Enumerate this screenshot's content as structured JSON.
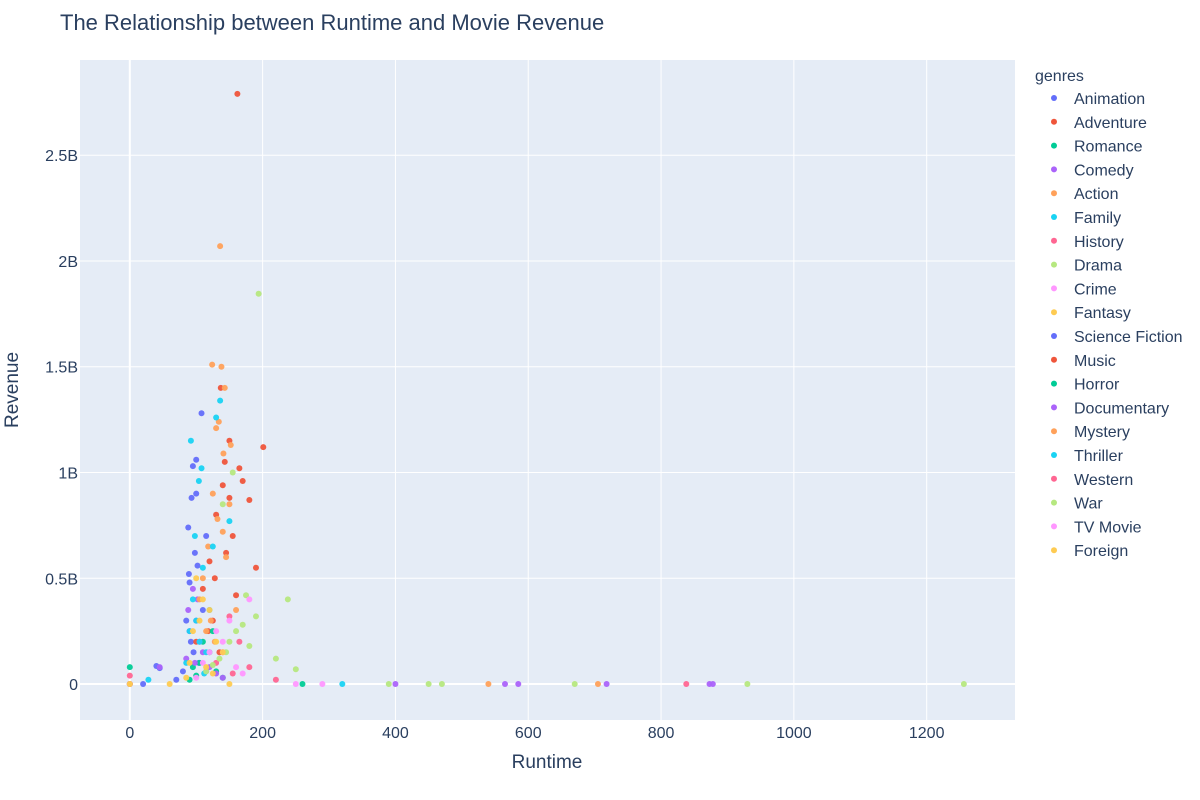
{
  "chart_data": {
    "type": "scatter",
    "title": "The Relationship between Runtime and Movie Revenue",
    "xlabel": "Runtime",
    "ylabel": "Revenue",
    "xlim": [
      -75,
      1333
    ],
    "ylim": [
      -170000000,
      2950000000
    ],
    "x_ticks": [
      0,
      200,
      400,
      600,
      800,
      1000,
      1200
    ],
    "x_tick_labels": [
      "0",
      "200",
      "400",
      "600",
      "800",
      "1000",
      "1200"
    ],
    "y_ticks": [
      0,
      500000000,
      1000000000,
      1500000000,
      2000000000,
      2500000000
    ],
    "y_tick_labels": [
      "0",
      "0.5B",
      "1B",
      "1.5B",
      "2B",
      "2.5B"
    ],
    "grid": true,
    "legend_title": "genres",
    "legend_position": "right",
    "series": [
      {
        "name": "Animation",
        "color": "#636efa",
        "points": [
          [
            93,
            880000000
          ],
          [
            100,
            1060000000
          ],
          [
            108,
            1280000000
          ],
          [
            95,
            1030000000
          ],
          [
            88,
            740000000
          ],
          [
            102,
            560000000
          ],
          [
            90,
            480000000
          ],
          [
            98,
            620000000
          ],
          [
            85,
            300000000
          ],
          [
            110,
            350000000
          ],
          [
            92,
            200000000
          ],
          [
            96,
            150000000
          ],
          [
            104,
            100000000
          ],
          [
            80,
            60000000
          ],
          [
            70,
            20000000
          ],
          [
            40,
            85000000
          ],
          [
            45,
            75000000
          ],
          [
            100,
            900000000
          ],
          [
            115,
            700000000
          ],
          [
            89,
            520000000
          ],
          [
            0,
            0
          ],
          [
            20,
            0
          ]
        ]
      },
      {
        "name": "Adventure",
        "color": "#ef553b",
        "points": [
          [
            162,
            2790000000
          ],
          [
            137,
            1400000000
          ],
          [
            150,
            1150000000
          ],
          [
            201,
            1120000000
          ],
          [
            165,
            1020000000
          ],
          [
            140,
            940000000
          ],
          [
            170,
            960000000
          ],
          [
            130,
            800000000
          ],
          [
            155,
            700000000
          ],
          [
            180,
            870000000
          ],
          [
            145,
            620000000
          ],
          [
            120,
            580000000
          ],
          [
            110,
            450000000
          ],
          [
            125,
            300000000
          ],
          [
            100,
            200000000
          ],
          [
            135,
            150000000
          ],
          [
            160,
            420000000
          ],
          [
            150,
            880000000
          ],
          [
            143,
            1050000000
          ],
          [
            128,
            500000000
          ],
          [
            118,
            250000000
          ],
          [
            190,
            550000000
          ],
          [
            0,
            0
          ]
        ]
      },
      {
        "name": "Romance",
        "color": "#00cc96",
        "points": [
          [
            0,
            80000000
          ],
          [
            110,
            200000000
          ],
          [
            120,
            150000000
          ],
          [
            105,
            100000000
          ],
          [
            95,
            80000000
          ],
          [
            130,
            60000000
          ],
          [
            125,
            250000000
          ],
          [
            100,
            40000000
          ],
          [
            140,
            30000000
          ],
          [
            90,
            20000000
          ],
          [
            260,
            0
          ]
        ]
      },
      {
        "name": "Comedy",
        "color": "#ab63fa",
        "points": [
          [
            95,
            450000000
          ],
          [
            100,
            300000000
          ],
          [
            90,
            250000000
          ],
          [
            105,
            200000000
          ],
          [
            110,
            150000000
          ],
          [
            85,
            120000000
          ],
          [
            98,
            100000000
          ],
          [
            120,
            80000000
          ],
          [
            115,
            60000000
          ],
          [
            88,
            350000000
          ],
          [
            102,
            400000000
          ],
          [
            130,
            50000000
          ],
          [
            140,
            30000000
          ],
          [
            400,
            0
          ],
          [
            565,
            0
          ],
          [
            585,
            0
          ],
          [
            718,
            0
          ],
          [
            873,
            0
          ],
          [
            878,
            0
          ],
          [
            0,
            0
          ],
          [
            45,
            80000000
          ]
        ]
      },
      {
        "name": "Action",
        "color": "#ffa15a",
        "points": [
          [
            136,
            2070000000
          ],
          [
            124,
            1510000000
          ],
          [
            138,
            1500000000
          ],
          [
            143,
            1400000000
          ],
          [
            134,
            1240000000
          ],
          [
            130,
            1210000000
          ],
          [
            141,
            1090000000
          ],
          [
            152,
            1130000000
          ],
          [
            125,
            900000000
          ],
          [
            150,
            850000000
          ],
          [
            118,
            650000000
          ],
          [
            132,
            780000000
          ],
          [
            140,
            720000000
          ],
          [
            110,
            500000000
          ],
          [
            105,
            400000000
          ],
          [
            122,
            300000000
          ],
          [
            128,
            200000000
          ],
          [
            145,
            600000000
          ],
          [
            160,
            350000000
          ],
          [
            115,
            250000000
          ],
          [
            540,
            0
          ],
          [
            705,
            0
          ],
          [
            0,
            0
          ]
        ]
      },
      {
        "name": "Family",
        "color": "#19d3f3",
        "points": [
          [
            136,
            1340000000
          ],
          [
            92,
            1150000000
          ],
          [
            130,
            1260000000
          ],
          [
            108,
            1020000000
          ],
          [
            104,
            960000000
          ],
          [
            98,
            700000000
          ],
          [
            110,
            550000000
          ],
          [
            95,
            400000000
          ],
          [
            120,
            350000000
          ],
          [
            100,
            300000000
          ],
          [
            90,
            250000000
          ],
          [
            105,
            200000000
          ],
          [
            115,
            150000000
          ],
          [
            85,
            100000000
          ],
          [
            112,
            50000000
          ],
          [
            125,
            650000000
          ],
          [
            150,
            770000000
          ],
          [
            320,
            0
          ],
          [
            28,
            20000000
          ]
        ]
      },
      {
        "name": "History",
        "color": "#ff6692",
        "points": [
          [
            0,
            40000000
          ],
          [
            150,
            320000000
          ],
          [
            165,
            200000000
          ],
          [
            140,
            150000000
          ],
          [
            130,
            100000000
          ],
          [
            180,
            80000000
          ],
          [
            155,
            50000000
          ],
          [
            838,
            0
          ],
          [
            220,
            20000000
          ]
        ]
      },
      {
        "name": "Drama",
        "color": "#b6e880",
        "points": [
          [
            194,
            1845000000
          ],
          [
            238,
            400000000
          ],
          [
            190,
            320000000
          ],
          [
            170,
            280000000
          ],
          [
            160,
            250000000
          ],
          [
            150,
            200000000
          ],
          [
            145,
            150000000
          ],
          [
            135,
            120000000
          ],
          [
            125,
            90000000
          ],
          [
            115,
            60000000
          ],
          [
            220,
            120000000
          ],
          [
            250,
            70000000
          ],
          [
            180,
            180000000
          ],
          [
            155,
            1000000000
          ],
          [
            140,
            850000000
          ],
          [
            175,
            420000000
          ],
          [
            930,
            0
          ],
          [
            1256,
            0
          ],
          [
            670,
            0
          ],
          [
            450,
            0
          ],
          [
            470,
            0
          ],
          [
            390,
            0
          ]
        ]
      },
      {
        "name": "Crime",
        "color": "#ff97ff",
        "points": [
          [
            180,
            400000000
          ],
          [
            150,
            300000000
          ],
          [
            130,
            250000000
          ],
          [
            140,
            200000000
          ],
          [
            120,
            150000000
          ],
          [
            110,
            100000000
          ],
          [
            160,
            80000000
          ],
          [
            170,
            50000000
          ],
          [
            100,
            30000000
          ],
          [
            250,
            0
          ],
          [
            290,
            0
          ]
        ]
      },
      {
        "name": "Fantasy",
        "color": "#fecb52",
        "points": [
          [
            100,
            500000000
          ],
          [
            110,
            400000000
          ],
          [
            120,
            350000000
          ],
          [
            105,
            300000000
          ],
          [
            95,
            250000000
          ],
          [
            130,
            200000000
          ],
          [
            140,
            150000000
          ],
          [
            90,
            100000000
          ],
          [
            115,
            80000000
          ],
          [
            125,
            50000000
          ],
          [
            85,
            30000000
          ],
          [
            0,
            0
          ],
          [
            60,
            0
          ],
          [
            150,
            0
          ]
        ]
      }
    ],
    "legend_entries": [
      "Animation",
      "Adventure",
      "Romance",
      "Comedy",
      "Action",
      "Family",
      "History",
      "Drama",
      "Crime",
      "Fantasy",
      "Science Fiction",
      "Music",
      "Horror",
      "Documentary",
      "Mystery",
      "Thriller",
      "Western",
      "War",
      "TV Movie",
      "Foreign"
    ],
    "legend_colors": [
      "#636efa",
      "#ef553b",
      "#00cc96",
      "#ab63fa",
      "#ffa15a",
      "#19d3f3",
      "#ff6692",
      "#b6e880",
      "#ff97ff",
      "#fecb52",
      "#636efa",
      "#ef553b",
      "#00cc96",
      "#ab63fa",
      "#ffa15a",
      "#19d3f3",
      "#ff6692",
      "#b6e880",
      "#ff97ff",
      "#fecb52"
    ]
  }
}
